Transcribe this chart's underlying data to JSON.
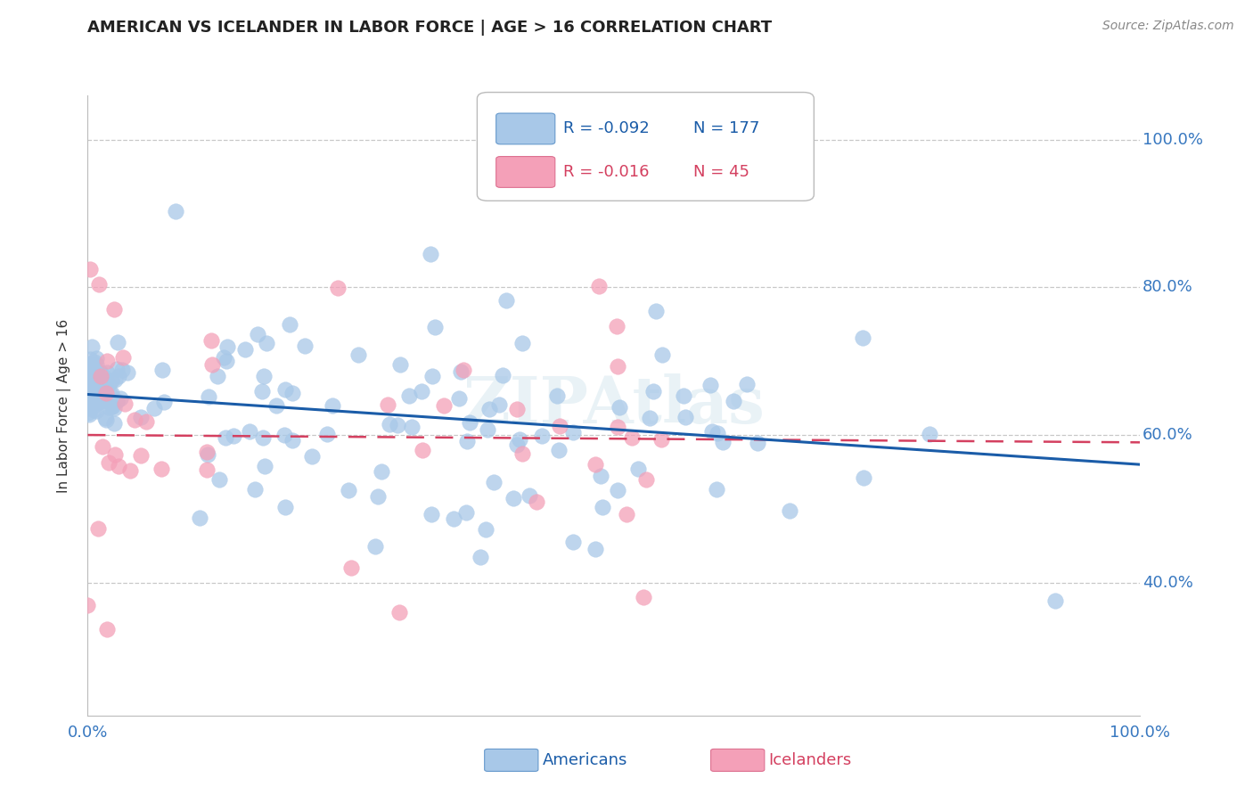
{
  "title": "AMERICAN VS ICELANDER IN LABOR FORCE | AGE > 16 CORRELATION CHART",
  "source": "Source: ZipAtlas.com",
  "ylabel": "In Labor Force | Age > 16",
  "xlim": [
    0.0,
    1.0
  ],
  "ylim": [
    0.22,
    1.06
  ],
  "yticks": [
    0.4,
    0.6,
    0.8,
    1.0
  ],
  "ytick_labels": [
    "40.0%",
    "60.0%",
    "80.0%",
    "100.0%"
  ],
  "american_color": "#a8c8e8",
  "icelander_color": "#f4a0b8",
  "american_line_color": "#1a5ca8",
  "icelander_line_color": "#d44060",
  "background_color": "#ffffff",
  "grid_color": "#c8c8c8",
  "title_color": "#222222",
  "axis_label_color": "#3878c0",
  "watermark": "ZIPAtlas",
  "american_intercept": 0.655,
  "american_slope": -0.095,
  "icelander_intercept": 0.6,
  "icelander_slope": -0.01,
  "legend_am_r": "-0.092",
  "legend_am_n": "177",
  "legend_ic_r": "-0.016",
  "legend_ic_n": "45"
}
